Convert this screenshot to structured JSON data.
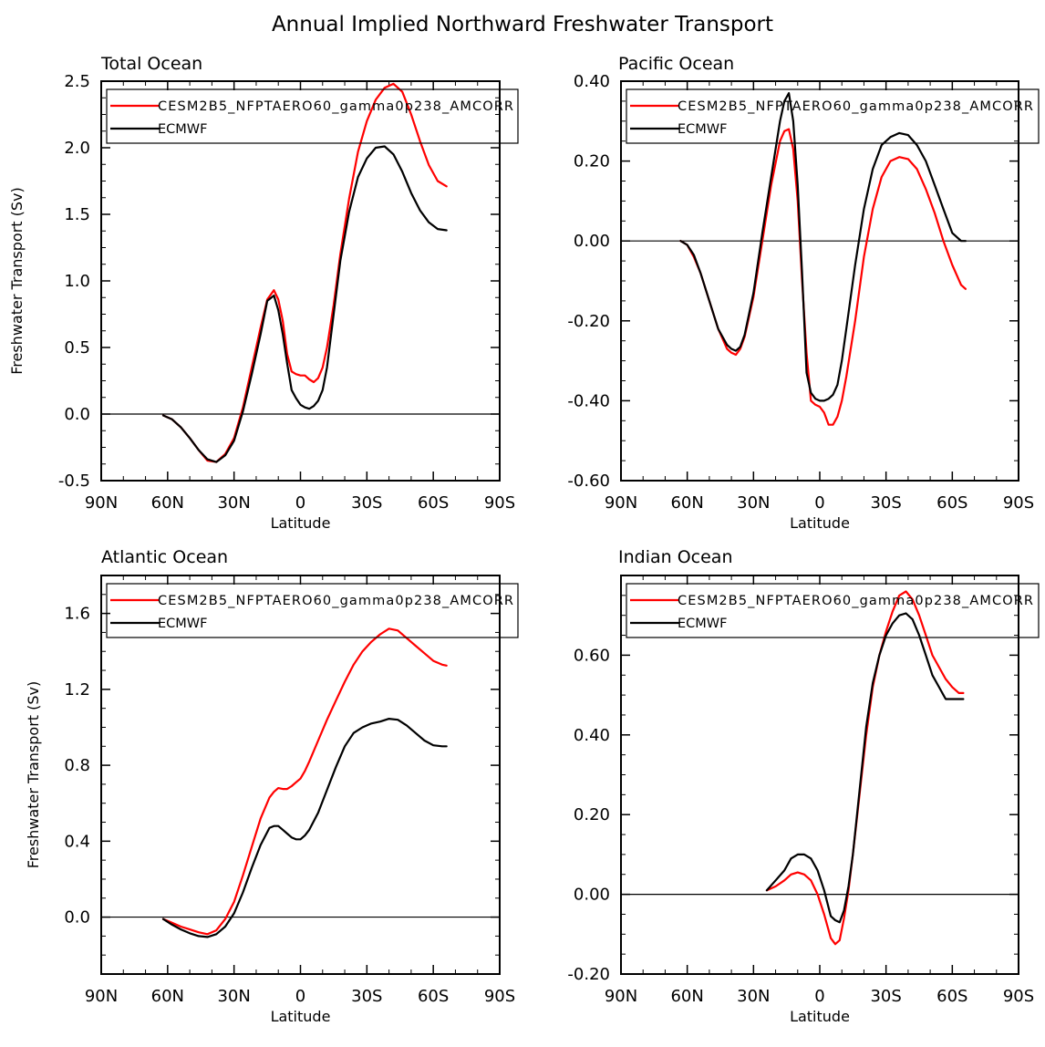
{
  "figure_title": "Annual Implied Northward Freshwater Transport",
  "colors": {
    "model": "#ff0000",
    "obs": "#000000",
    "axis": "#000000",
    "background": "#ffffff"
  },
  "chart_data": [
    {
      "type": "line",
      "title": "Total Ocean",
      "xlabel": "Latitude",
      "ylabel": "Freshwater Transport (Sv)",
      "xlim": [
        -90,
        90
      ],
      "xticks": [
        -90,
        -60,
        -30,
        0,
        30,
        60,
        90
      ],
      "xticklabels": [
        "90N",
        "60N",
        "30N",
        "0",
        "30S",
        "60S",
        "90S"
      ],
      "ylim": [
        -0.5,
        2.5
      ],
      "yticks": [
        -0.5,
        0.0,
        0.5,
        1.0,
        1.5,
        2.0,
        2.5
      ],
      "yticklabels": [
        "-0.5",
        "0.0",
        "0.5",
        "1.0",
        "1.5",
        "2.0",
        "2.5"
      ],
      "legend_position": "top",
      "series": [
        {
          "name": "CESM2B5_NFPTAERO60_gamma0p238_AMCORR",
          "color": "#ff0000",
          "x": [
            -62,
            -58,
            -54,
            -50,
            -46,
            -42,
            -38,
            -34,
            -30,
            -26,
            -22,
            -18,
            -15,
            -12,
            -10,
            -8,
            -6,
            -4,
            -2,
            0,
            2,
            4,
            6,
            8,
            10,
            12,
            15,
            18,
            22,
            26,
            30,
            34,
            38,
            42,
            46,
            50,
            54,
            58,
            62,
            66
          ],
          "y": [
            -0.01,
            -0.04,
            -0.1,
            -0.18,
            -0.27,
            -0.35,
            -0.36,
            -0.3,
            -0.18,
            0.05,
            0.35,
            0.65,
            0.86,
            0.93,
            0.86,
            0.7,
            0.45,
            0.32,
            0.3,
            0.29,
            0.29,
            0.26,
            0.24,
            0.27,
            0.35,
            0.5,
            0.82,
            1.2,
            1.62,
            1.97,
            2.2,
            2.36,
            2.45,
            2.48,
            2.42,
            2.25,
            2.05,
            1.87,
            1.75,
            1.71
          ]
        },
        {
          "name": "ECMWF",
          "color": "#000000",
          "x": [
            -62,
            -58,
            -54,
            -50,
            -46,
            -42,
            -38,
            -34,
            -30,
            -26,
            -22,
            -18,
            -15,
            -12,
            -10,
            -8,
            -6,
            -4,
            -2,
            0,
            2,
            4,
            6,
            8,
            10,
            12,
            15,
            18,
            22,
            26,
            30,
            34,
            38,
            42,
            46,
            50,
            54,
            58,
            62,
            66
          ],
          "y": [
            -0.01,
            -0.04,
            -0.1,
            -0.18,
            -0.27,
            -0.34,
            -0.36,
            -0.31,
            -0.2,
            0.02,
            0.3,
            0.6,
            0.85,
            0.89,
            0.78,
            0.6,
            0.38,
            0.18,
            0.12,
            0.07,
            0.05,
            0.04,
            0.06,
            0.1,
            0.18,
            0.35,
            0.75,
            1.15,
            1.52,
            1.78,
            1.92,
            2.0,
            2.01,
            1.95,
            1.82,
            1.66,
            1.53,
            1.44,
            1.39,
            1.38
          ]
        }
      ]
    },
    {
      "type": "line",
      "title": "Pacific Ocean",
      "xlabel": "Latitude",
      "ylabel": "",
      "xlim": [
        -90,
        90
      ],
      "xticks": [
        -90,
        -60,
        -30,
        0,
        30,
        60,
        90
      ],
      "xticklabels": [
        "90N",
        "60N",
        "30N",
        "0",
        "30S",
        "60S",
        "90S"
      ],
      "ylim": [
        -0.6,
        0.4
      ],
      "yticks": [
        -0.6,
        -0.4,
        -0.2,
        0.0,
        0.2,
        0.4
      ],
      "yticklabels": [
        "-0.60",
        "-0.40",
        "-0.20",
        "0.00",
        "0.20",
        "0.40"
      ],
      "legend_position": "top",
      "series": [
        {
          "name": "CESM2B5_NFPTAERO60_gamma0p238_AMCORR",
          "color": "#ff0000",
          "x": [
            -63,
            -60,
            -57,
            -54,
            -50,
            -46,
            -42,
            -40,
            -38,
            -36,
            -34,
            -30,
            -26,
            -22,
            -18,
            -16,
            -14,
            -12,
            -10,
            -8,
            -6,
            -4,
            -2,
            0,
            2,
            4,
            6,
            8,
            10,
            12,
            16,
            20,
            24,
            28,
            32,
            36,
            40,
            44,
            48,
            52,
            56,
            60,
            64,
            66
          ],
          "y": [
            -0.0,
            -0.01,
            -0.04,
            -0.08,
            -0.15,
            -0.22,
            -0.27,
            -0.28,
            -0.285,
            -0.27,
            -0.24,
            -0.14,
            0.0,
            0.14,
            0.25,
            0.275,
            0.28,
            0.23,
            0.1,
            -0.1,
            -0.28,
            -0.4,
            -0.41,
            -0.415,
            -0.43,
            -0.46,
            -0.46,
            -0.44,
            -0.4,
            -0.34,
            -0.2,
            -0.04,
            0.08,
            0.16,
            0.2,
            0.21,
            0.205,
            0.18,
            0.13,
            0.07,
            0.0,
            -0.06,
            -0.11,
            -0.12
          ]
        },
        {
          "name": "ECMWF",
          "color": "#000000",
          "x": [
            -63,
            -60,
            -57,
            -54,
            -50,
            -46,
            -42,
            -40,
            -38,
            -36,
            -34,
            -30,
            -26,
            -22,
            -18,
            -16,
            -14,
            -12,
            -10,
            -8,
            -6,
            -4,
            -2,
            0,
            2,
            4,
            6,
            8,
            10,
            12,
            16,
            20,
            24,
            28,
            32,
            36,
            40,
            44,
            48,
            52,
            56,
            60,
            64,
            66
          ],
          "y": [
            -0.0,
            -0.01,
            -0.035,
            -0.08,
            -0.15,
            -0.22,
            -0.26,
            -0.27,
            -0.275,
            -0.265,
            -0.235,
            -0.13,
            0.02,
            0.16,
            0.3,
            0.35,
            0.37,
            0.3,
            0.14,
            -0.08,
            -0.33,
            -0.38,
            -0.395,
            -0.4,
            -0.4,
            -0.395,
            -0.385,
            -0.36,
            -0.3,
            -0.22,
            -0.06,
            0.08,
            0.18,
            0.24,
            0.26,
            0.27,
            0.265,
            0.24,
            0.2,
            0.14,
            0.08,
            0.02,
            0.0,
            -0.0
          ]
        }
      ]
    },
    {
      "type": "line",
      "title": "Atlantic Ocean",
      "xlabel": "Latitude",
      "ylabel": "Freshwater Transport (Sv)",
      "xlim": [
        -90,
        90
      ],
      "xticks": [
        -90,
        -60,
        -30,
        0,
        30,
        60,
        90
      ],
      "xticklabels": [
        "90N",
        "60N",
        "30N",
        "0",
        "30S",
        "60S",
        "90S"
      ],
      "ylim": [
        -0.3,
        1.8
      ],
      "yticks": [
        0.0,
        0.4,
        0.8,
        1.2,
        1.6
      ],
      "yticklabels": [
        "0.0",
        "0.4",
        "0.8",
        "1.2",
        "1.6"
      ],
      "legend_position": "top",
      "series": [
        {
          "name": "CESM2B5_NFPTAERO60_gamma0p238_AMCORR",
          "color": "#ff0000",
          "x": [
            -62,
            -58,
            -54,
            -50,
            -46,
            -42,
            -38,
            -34,
            -30,
            -26,
            -22,
            -18,
            -14,
            -12,
            -10,
            -8,
            -6,
            -4,
            -2,
            0,
            2,
            4,
            8,
            12,
            16,
            20,
            24,
            28,
            32,
            36,
            40,
            44,
            48,
            52,
            56,
            60,
            64,
            66
          ],
          "y": [
            -0.01,
            -0.03,
            -0.05,
            -0.065,
            -0.08,
            -0.09,
            -0.07,
            -0.01,
            0.08,
            0.22,
            0.37,
            0.52,
            0.63,
            0.66,
            0.68,
            0.675,
            0.675,
            0.69,
            0.71,
            0.73,
            0.77,
            0.82,
            0.93,
            1.04,
            1.14,
            1.24,
            1.33,
            1.4,
            1.45,
            1.49,
            1.52,
            1.51,
            1.47,
            1.43,
            1.39,
            1.35,
            1.33,
            1.325
          ]
        },
        {
          "name": "ECMWF",
          "color": "#000000",
          "x": [
            -62,
            -58,
            -54,
            -50,
            -46,
            -42,
            -38,
            -34,
            -30,
            -26,
            -22,
            -18,
            -14,
            -12,
            -10,
            -8,
            -6,
            -4,
            -2,
            0,
            2,
            4,
            8,
            12,
            16,
            20,
            24,
            28,
            32,
            36,
            40,
            44,
            48,
            52,
            56,
            60,
            64,
            66
          ],
          "y": [
            -0.01,
            -0.04,
            -0.065,
            -0.085,
            -0.1,
            -0.105,
            -0.09,
            -0.05,
            0.02,
            0.13,
            0.26,
            0.38,
            0.47,
            0.48,
            0.48,
            0.46,
            0.44,
            0.42,
            0.41,
            0.41,
            0.43,
            0.46,
            0.55,
            0.67,
            0.79,
            0.9,
            0.97,
            1.0,
            1.02,
            1.03,
            1.045,
            1.04,
            1.01,
            0.97,
            0.93,
            0.905,
            0.9,
            0.9
          ]
        }
      ]
    },
    {
      "type": "line",
      "title": "Indian Ocean",
      "xlabel": "Latitude",
      "ylabel": "",
      "xlim": [
        -90,
        90
      ],
      "xticks": [
        -90,
        -60,
        -30,
        0,
        30,
        60,
        90
      ],
      "xticklabels": [
        "90N",
        "60N",
        "30N",
        "0",
        "30S",
        "60S",
        "90S"
      ],
      "ylim": [
        -0.2,
        0.8
      ],
      "yticks": [
        -0.2,
        0.0,
        0.2,
        0.4,
        0.6
      ],
      "yticklabels": [
        "-0.20",
        "0.00",
        "0.20",
        "0.40",
        "0.60"
      ],
      "legend_position": "top",
      "series": [
        {
          "name": "CESM2B5_NFPTAERO60_gamma0p238_AMCORR",
          "color": "#ff0000",
          "x": [
            -24,
            -20,
            -16,
            -13,
            -10,
            -7,
            -4,
            -1,
            2,
            5,
            7,
            9,
            11,
            13,
            15,
            18,
            21,
            24,
            27,
            30,
            33,
            36,
            39,
            42,
            45,
            48,
            51,
            54,
            57,
            60,
            63,
            65
          ],
          "y": [
            0.01,
            0.02,
            0.035,
            0.05,
            0.055,
            0.05,
            0.035,
            0.0,
            -0.05,
            -0.11,
            -0.125,
            -0.115,
            -0.06,
            0.01,
            0.1,
            0.25,
            0.4,
            0.52,
            0.6,
            0.66,
            0.71,
            0.75,
            0.76,
            0.74,
            0.7,
            0.65,
            0.6,
            0.57,
            0.54,
            0.52,
            0.505,
            0.505
          ]
        },
        {
          "name": "ECMWF",
          "color": "#000000",
          "x": [
            -24,
            -20,
            -16,
            -13,
            -10,
            -7,
            -4,
            -1,
            2,
            5,
            7,
            9,
            11,
            13,
            15,
            18,
            21,
            24,
            27,
            30,
            33,
            36,
            39,
            42,
            45,
            48,
            51,
            54,
            57,
            60,
            63,
            65
          ],
          "y": [
            0.01,
            0.035,
            0.06,
            0.09,
            0.1,
            0.1,
            0.09,
            0.06,
            0.01,
            -0.055,
            -0.065,
            -0.07,
            -0.04,
            0.02,
            0.1,
            0.26,
            0.42,
            0.53,
            0.6,
            0.65,
            0.68,
            0.7,
            0.705,
            0.69,
            0.65,
            0.6,
            0.55,
            0.52,
            0.49,
            0.49,
            0.49,
            0.49
          ]
        }
      ]
    }
  ]
}
